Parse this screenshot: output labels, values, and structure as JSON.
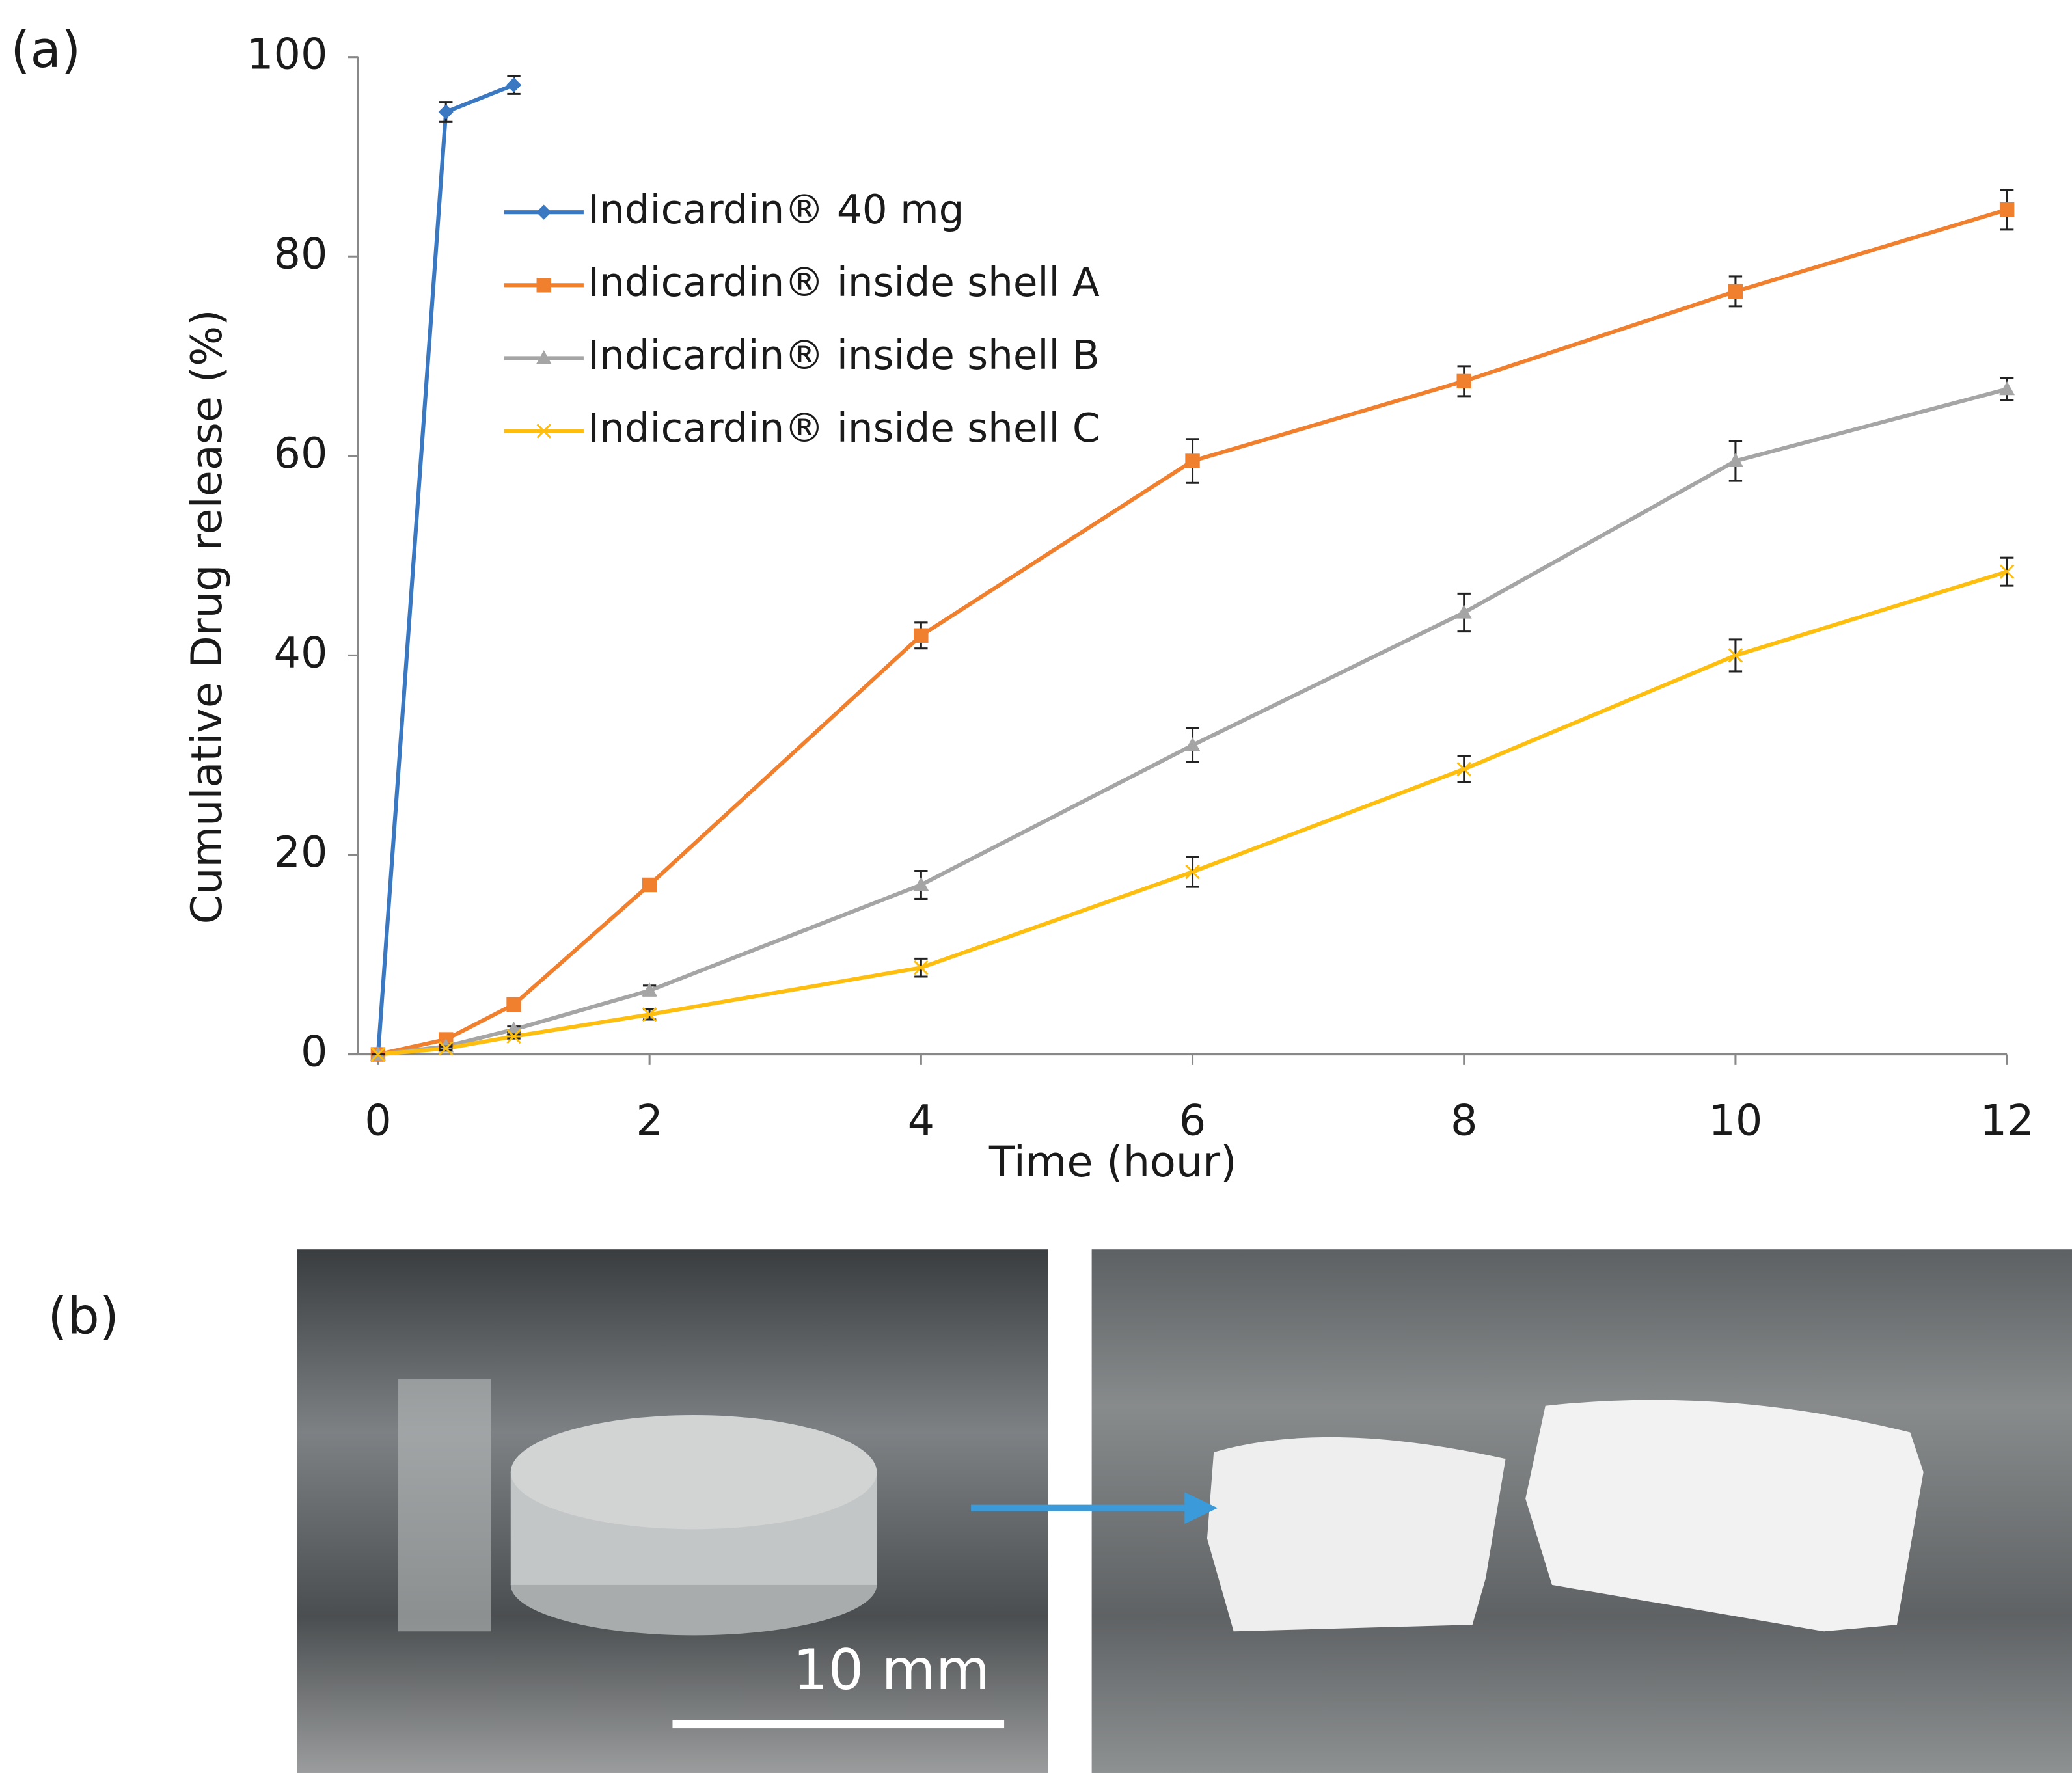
{
  "panel_labels": [
    "(a)",
    "(b)"
  ],
  "scale_bar_label": "10 mm",
  "chart_data": {
    "type": "line",
    "x_label": "Time (hour)",
    "y_label": "Cumulative Drug release (%)",
    "x": [
      0,
      0.5,
      1,
      2,
      4,
      6,
      8,
      10,
      12
    ],
    "xlim": [
      0,
      12
    ],
    "xticks": [
      0,
      2,
      4,
      6,
      8,
      10,
      12
    ],
    "ylim": [
      0,
      100
    ],
    "yticks": [
      0,
      20,
      40,
      60,
      80,
      100
    ],
    "grid": false,
    "legend": "upper left",
    "series": [
      {
        "name": "Indicardin® 40 mg",
        "color": "#3b78c2",
        "marker": "diamond",
        "values": [
          0,
          94.5,
          97.2,
          null,
          null,
          null,
          null,
          null,
          null
        ],
        "errors": [
          0,
          1,
          0.9,
          null,
          null,
          null,
          null,
          null,
          null
        ]
      },
      {
        "name": "Indicardin® inside shell A",
        "color": "#f07f2e",
        "marker": "square",
        "values": [
          0,
          1.5,
          5,
          17,
          42,
          59.5,
          67.5,
          76.5,
          84.7
        ],
        "errors": [
          0,
          0.3,
          0.4,
          0.3,
          1.3,
          2.2,
          1.5,
          1.5,
          2
        ]
      },
      {
        "name": "Indicardin® inside shell B",
        "color": "#a5a5a5",
        "marker": "triangle",
        "values": [
          0,
          0.8,
          2.5,
          6.4,
          17,
          31,
          44.3,
          59.5,
          66.7
        ],
        "errors": [
          0,
          0.2,
          0.3,
          0.5,
          1.4,
          1.7,
          1.9,
          2,
          1.1
        ]
      },
      {
        "name": "Indicardin® inside shell C",
        "color": "#fdbe10",
        "marker": "x",
        "values": [
          0,
          0.6,
          1.8,
          4,
          8.7,
          18.3,
          28.6,
          40,
          48.4
        ],
        "errors": [
          0,
          0.2,
          0.2,
          0.5,
          0.9,
          1.5,
          1.3,
          1.6,
          1.4
        ]
      }
    ]
  }
}
